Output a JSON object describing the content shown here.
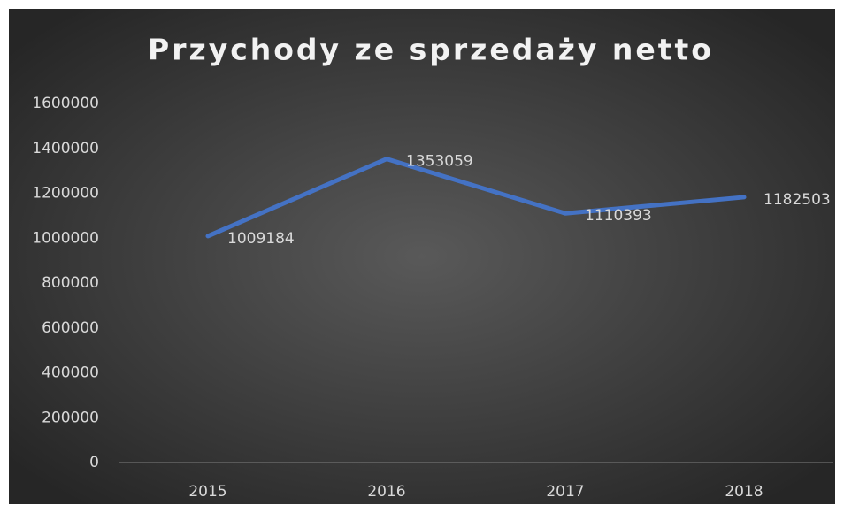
{
  "chart_data": {
    "type": "line",
    "title": "Przychody ze sprzedaży netto",
    "categories": [
      "2015",
      "2016",
      "2017",
      "2018"
    ],
    "series": [
      {
        "name": "Przychody ze sprzedaży netto",
        "color": "#4472c4",
        "values": [
          1009184,
          1353059,
          1110393,
          1182503
        ]
      }
    ],
    "ylim": [
      0,
      1600000
    ],
    "yticks": [
      0,
      200000,
      400000,
      600000,
      800000,
      1000000,
      1200000,
      1400000,
      1600000
    ]
  }
}
